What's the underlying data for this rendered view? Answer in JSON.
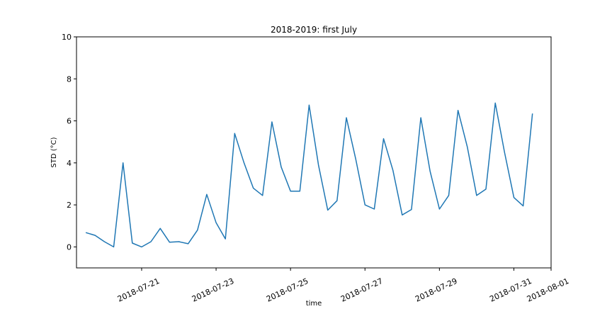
{
  "chart_data": {
    "type": "line",
    "title": "2018-2019: first July",
    "xlabel": "time",
    "ylabel": "STD (°C)",
    "ylim": [
      -1,
      10
    ],
    "yticks": [
      0,
      2,
      4,
      6,
      8,
      10
    ],
    "xlim": [
      "2018-07-19 06:00",
      "2018-08-01 00:00"
    ],
    "xticks": [
      "2018-07-21",
      "2018-07-23",
      "2018-07-25",
      "2018-07-27",
      "2018-07-29",
      "2018-07-31",
      "2018-08-01"
    ],
    "grid": false,
    "color": "#1f77b4",
    "series": [
      {
        "x": [
          "2018-07-19 12:00",
          "2018-07-19 18:00",
          "2018-07-20 00:00",
          "2018-07-20 06:00",
          "2018-07-20 12:00",
          "2018-07-20 18:00",
          "2018-07-21 00:00",
          "2018-07-21 06:00",
          "2018-07-21 12:00",
          "2018-07-21 18:00",
          "2018-07-22 00:00",
          "2018-07-22 06:00",
          "2018-07-22 12:00",
          "2018-07-22 18:00",
          "2018-07-23 00:00",
          "2018-07-23 06:00",
          "2018-07-23 12:00",
          "2018-07-23 18:00",
          "2018-07-24 00:00",
          "2018-07-24 06:00",
          "2018-07-24 12:00",
          "2018-07-24 18:00",
          "2018-07-25 00:00",
          "2018-07-25 06:00",
          "2018-07-25 12:00",
          "2018-07-25 18:00",
          "2018-07-26 00:00",
          "2018-07-26 06:00",
          "2018-07-26 12:00",
          "2018-07-26 18:00",
          "2018-07-27 00:00",
          "2018-07-27 06:00",
          "2018-07-27 12:00",
          "2018-07-27 18:00",
          "2018-07-28 00:00",
          "2018-07-28 06:00",
          "2018-07-28 12:00",
          "2018-07-28 18:00",
          "2018-07-29 00:00",
          "2018-07-29 06:00",
          "2018-07-29 12:00",
          "2018-07-29 18:00",
          "2018-07-30 00:00",
          "2018-07-30 06:00",
          "2018-07-30 12:00",
          "2018-07-30 18:00",
          "2018-07-31 00:00",
          "2018-07-31 06:00",
          "2018-07-31 12:00",
          "2018-07-31 18:00"
        ],
        "y": [
          0.68,
          0.55,
          0.25,
          0.0,
          4.0,
          0.18,
          0.0,
          0.25,
          0.88,
          0.22,
          0.25,
          0.15,
          0.8,
          2.5,
          1.15,
          0.38,
          5.4,
          4.0,
          2.8,
          2.45,
          5.95,
          3.8,
          2.65,
          2.65,
          6.75,
          3.9,
          1.75,
          2.2,
          6.15,
          4.2,
          2.0,
          1.8,
          5.15,
          3.65,
          1.52,
          1.78,
          6.15,
          3.6,
          1.8,
          2.45,
          6.5,
          4.75,
          2.45,
          2.75,
          6.85,
          4.5,
          2.35,
          1.95,
          6.35,
          null
        ]
      }
    ]
  }
}
